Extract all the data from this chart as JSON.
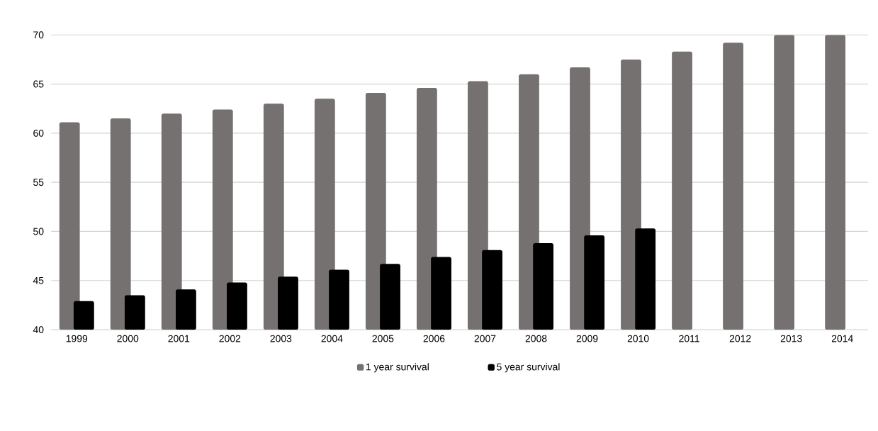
{
  "chart_data": {
    "type": "bar",
    "categories": [
      "1999",
      "2000",
      "2001",
      "2002",
      "2003",
      "2004",
      "2005",
      "2006",
      "2007",
      "2008",
      "2009",
      "2010",
      "2011",
      "2012",
      "2013",
      "2014"
    ],
    "series": [
      {
        "name": "1 year survival",
        "color": "#767171",
        "values": [
          61.1,
          61.5,
          62.0,
          62.4,
          63.0,
          63.5,
          64.1,
          64.6,
          65.3,
          66.0,
          66.7,
          67.5,
          68.3,
          69.2,
          70.0,
          70.0
        ]
      },
      {
        "name": "5 year survival",
        "color": "#000000",
        "values": [
          42.9,
          43.5,
          44.1,
          44.8,
          45.4,
          46.1,
          46.7,
          47.4,
          48.1,
          48.8,
          49.6,
          50.3,
          null,
          null,
          null,
          null
        ]
      }
    ],
    "ylim": [
      40,
      70
    ],
    "yticks": [
      40,
      45,
      50,
      55,
      60,
      65,
      70
    ],
    "grid": "y",
    "legend": "bottom"
  }
}
